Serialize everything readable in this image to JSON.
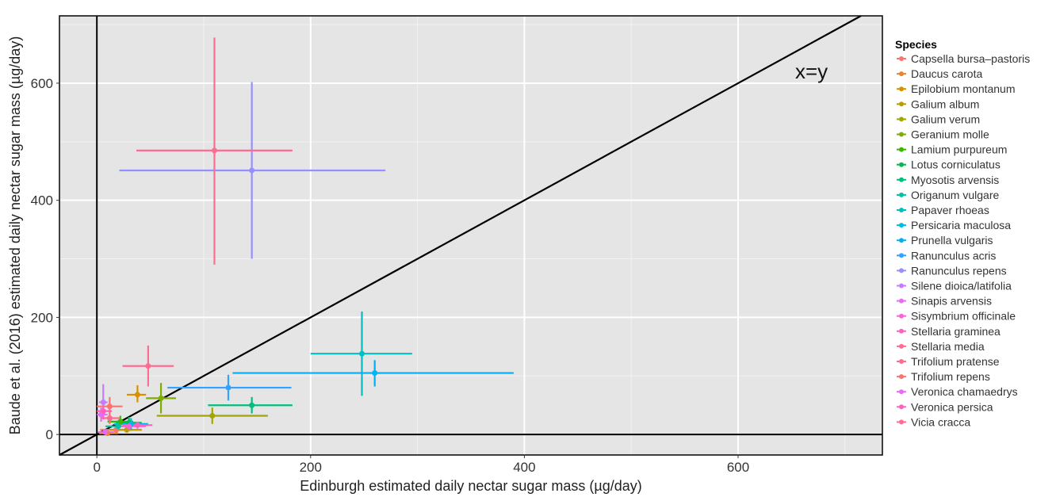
{
  "chart_data": {
    "type": "scatter",
    "xlabel": "Edinburgh estimated daily nectar sugar mass (µg/day)",
    "ylabel": "Baude et al. (2016) estimated daily nectar sugar mass (µg/day)",
    "xlim": [
      -35,
      735
    ],
    "ylim": [
      -35,
      715
    ],
    "x_ticks": [
      0,
      200,
      400,
      600
    ],
    "y_ticks": [
      0,
      200,
      400,
      600
    ],
    "grid": true,
    "reference_lines": [
      {
        "type": "identity",
        "label": "x=y"
      },
      {
        "type": "vertical",
        "x": 0
      },
      {
        "type": "horizontal",
        "y": 0
      }
    ],
    "legend": {
      "title": "Species",
      "position": "right"
    },
    "series": [
      {
        "name": "Capsella bursa–pastoris",
        "color": "#F8766D",
        "x": 18,
        "y": 8,
        "x_err": [
          3,
          32
        ],
        "y_err": [
          3,
          14
        ]
      },
      {
        "name": "Daucus carota",
        "color": "#EA8331",
        "x": 10,
        "y": 2,
        "x_err": [
          2,
          20
        ],
        "y_err": [
          0,
          6
        ]
      },
      {
        "name": "Epilobium montanum",
        "color": "#D89000",
        "x": 38,
        "y": 68,
        "x_err": [
          28,
          46
        ],
        "y_err": [
          55,
          84
        ]
      },
      {
        "name": "Galium album",
        "color": "#C09B00",
        "x": 28,
        "y": 8,
        "x_err": [
          12,
          42
        ],
        "y_err": [
          3,
          16
        ]
      },
      {
        "name": "Galium verum",
        "color": "#A3A500",
        "x": 108,
        "y": 32,
        "x_err": [
          56,
          160
        ],
        "y_err": [
          18,
          46
        ]
      },
      {
        "name": "Geranium molle",
        "color": "#7CAE00",
        "x": 60,
        "y": 62,
        "x_err": [
          46,
          74
        ],
        "y_err": [
          36,
          88
        ]
      },
      {
        "name": "Lamium purpureum",
        "color": "#39B600",
        "x": 22,
        "y": 22,
        "x_err": [
          10,
          34
        ],
        "y_err": [
          12,
          32
        ]
      },
      {
        "name": "Lotus corniculatus",
        "color": "#00BB4E",
        "x": 30,
        "y": 20,
        "x_err": [
          18,
          42
        ],
        "y_err": [
          10,
          30
        ]
      },
      {
        "name": "Myosotis arvensis",
        "color": "#00BF7D",
        "x": 145,
        "y": 50,
        "x_err": [
          104,
          183
        ],
        "y_err": [
          36,
          64
        ]
      },
      {
        "name": "Origanum vulgare",
        "color": "#00C1A3",
        "x": 20,
        "y": 14,
        "x_err": [
          8,
          32
        ],
        "y_err": [
          6,
          24
        ]
      },
      {
        "name": "Papaver rhoeas",
        "color": "#00BFC4",
        "x": 248,
        "y": 138,
        "x_err": [
          200,
          295
        ],
        "y_err": [
          66,
          210
        ]
      },
      {
        "name": "Persicaria maculosa",
        "color": "#00BAE0",
        "x": 32,
        "y": 18,
        "x_err": [
          16,
          48
        ],
        "y_err": [
          8,
          28
        ]
      },
      {
        "name": "Prunella vulgaris",
        "color": "#00B0F6",
        "x": 260,
        "y": 105,
        "x_err": [
          127,
          390
        ],
        "y_err": [
          82,
          127
        ]
      },
      {
        "name": "Ranunculus acris",
        "color": "#35A2FF",
        "x": 123,
        "y": 80,
        "x_err": [
          66,
          182
        ],
        "y_err": [
          58,
          102
        ]
      },
      {
        "name": "Ranunculus repens",
        "color": "#9590FF",
        "x": 145,
        "y": 451,
        "x_err": [
          21,
          270
        ],
        "y_err": [
          300,
          602
        ]
      },
      {
        "name": "Silene dioica/latifolia",
        "color": "#C77CFF",
        "x": 6,
        "y": 55,
        "x_err": [
          2,
          10
        ],
        "y_err": [
          28,
          86
        ]
      },
      {
        "name": "Sinapis arvensis",
        "color": "#E76BF3",
        "x": 8,
        "y": 4,
        "x_err": [
          1,
          16
        ],
        "y_err": [
          0,
          8
        ]
      },
      {
        "name": "Sisymbrium officinale",
        "color": "#FA62DB",
        "x": 30,
        "y": 14,
        "x_err": [
          18,
          46
        ],
        "y_err": [
          8,
          22
        ]
      },
      {
        "name": "Stellaria graminea",
        "color": "#FF62BC",
        "x": 38,
        "y": 16,
        "x_err": [
          24,
          52
        ],
        "y_err": [
          10,
          22
        ]
      },
      {
        "name": "Stellaria media",
        "color": "#FF6C91",
        "x": 12,
        "y": 28,
        "x_err": [
          4,
          22
        ],
        "y_err": [
          18,
          38
        ]
      },
      {
        "name": "Trifolium pratense",
        "color": "#FF6C91",
        "x": 48,
        "y": 117,
        "x_err": [
          24,
          72
        ],
        "y_err": [
          82,
          152
        ]
      },
      {
        "name": "Trifolium repens",
        "color": "#F8766D",
        "x": 12,
        "y": 48,
        "x_err": [
          0,
          24
        ],
        "y_err": [
          32,
          64
        ]
      },
      {
        "name": "Veronica chamaedrys",
        "color": "#E76BF3",
        "x": 4,
        "y": 34,
        "x_err": [
          0,
          10
        ],
        "y_err": [
          22,
          46
        ]
      },
      {
        "name": "Veronica persica",
        "color": "#FF62BC",
        "x": 6,
        "y": 40,
        "x_err": [
          0,
          14
        ],
        "y_err": [
          26,
          54
        ]
      },
      {
        "name": "Vicia cracca",
        "color": "#FF6C91",
        "x": 110,
        "y": 485,
        "x_err": [
          37,
          183
        ],
        "y_err": [
          290,
          678
        ]
      }
    ]
  }
}
